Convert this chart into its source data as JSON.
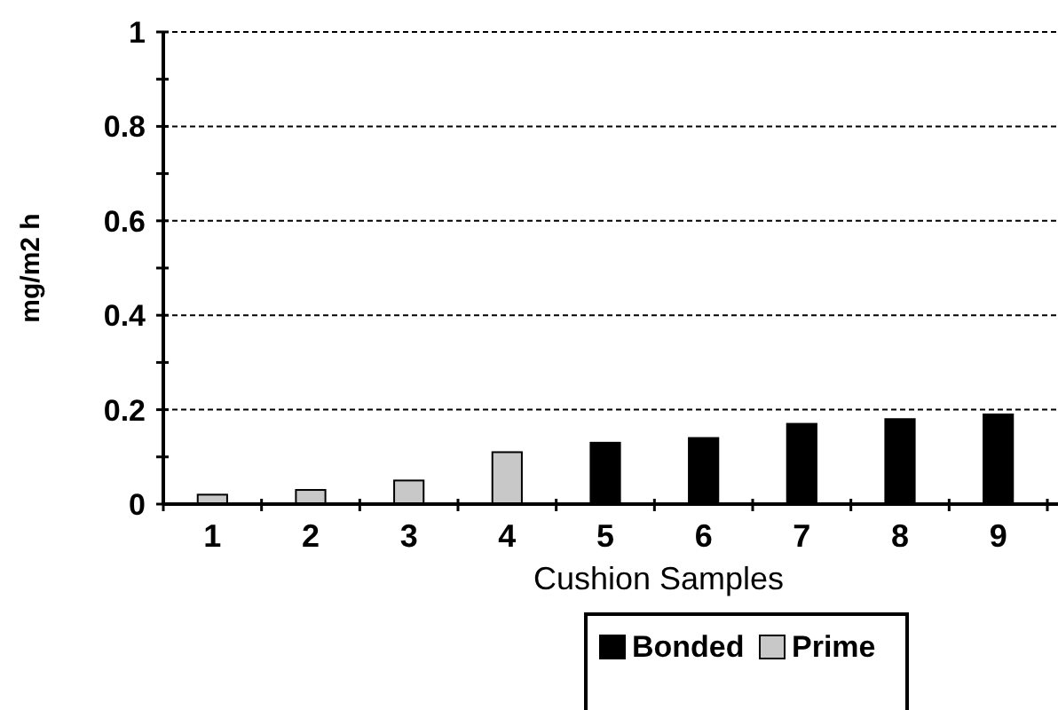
{
  "chart_data": {
    "type": "bar",
    "xlabel": "Cushion Samples",
    "ylabel": "mg/m2 h",
    "categories": [
      "1",
      "2",
      "3",
      "4",
      "5",
      "6",
      "7",
      "8",
      "9"
    ],
    "series": [
      {
        "name": "Bonded",
        "color": "#000000",
        "values": [
          null,
          null,
          null,
          null,
          0.13,
          0.14,
          0.17,
          0.18,
          0.19
        ]
      },
      {
        "name": "Prime",
        "color": "#c8c8c8",
        "values": [
          0.02,
          0.03,
          0.05,
          0.11,
          null,
          null,
          null,
          null,
          null
        ]
      }
    ],
    "ylim": [
      0,
      1
    ],
    "yticks": [
      0,
      {
        "value": 0.1,
        "label": null
      },
      0.2,
      {
        "value": 0.3,
        "label": null
      },
      0.4,
      {
        "value": 0.5,
        "label": null
      },
      0.6,
      {
        "value": 0.7,
        "label": null
      },
      0.8,
      {
        "value": 0.9,
        "label": null
      },
      1
    ],
    "grid": "y",
    "legend": "bottom"
  }
}
